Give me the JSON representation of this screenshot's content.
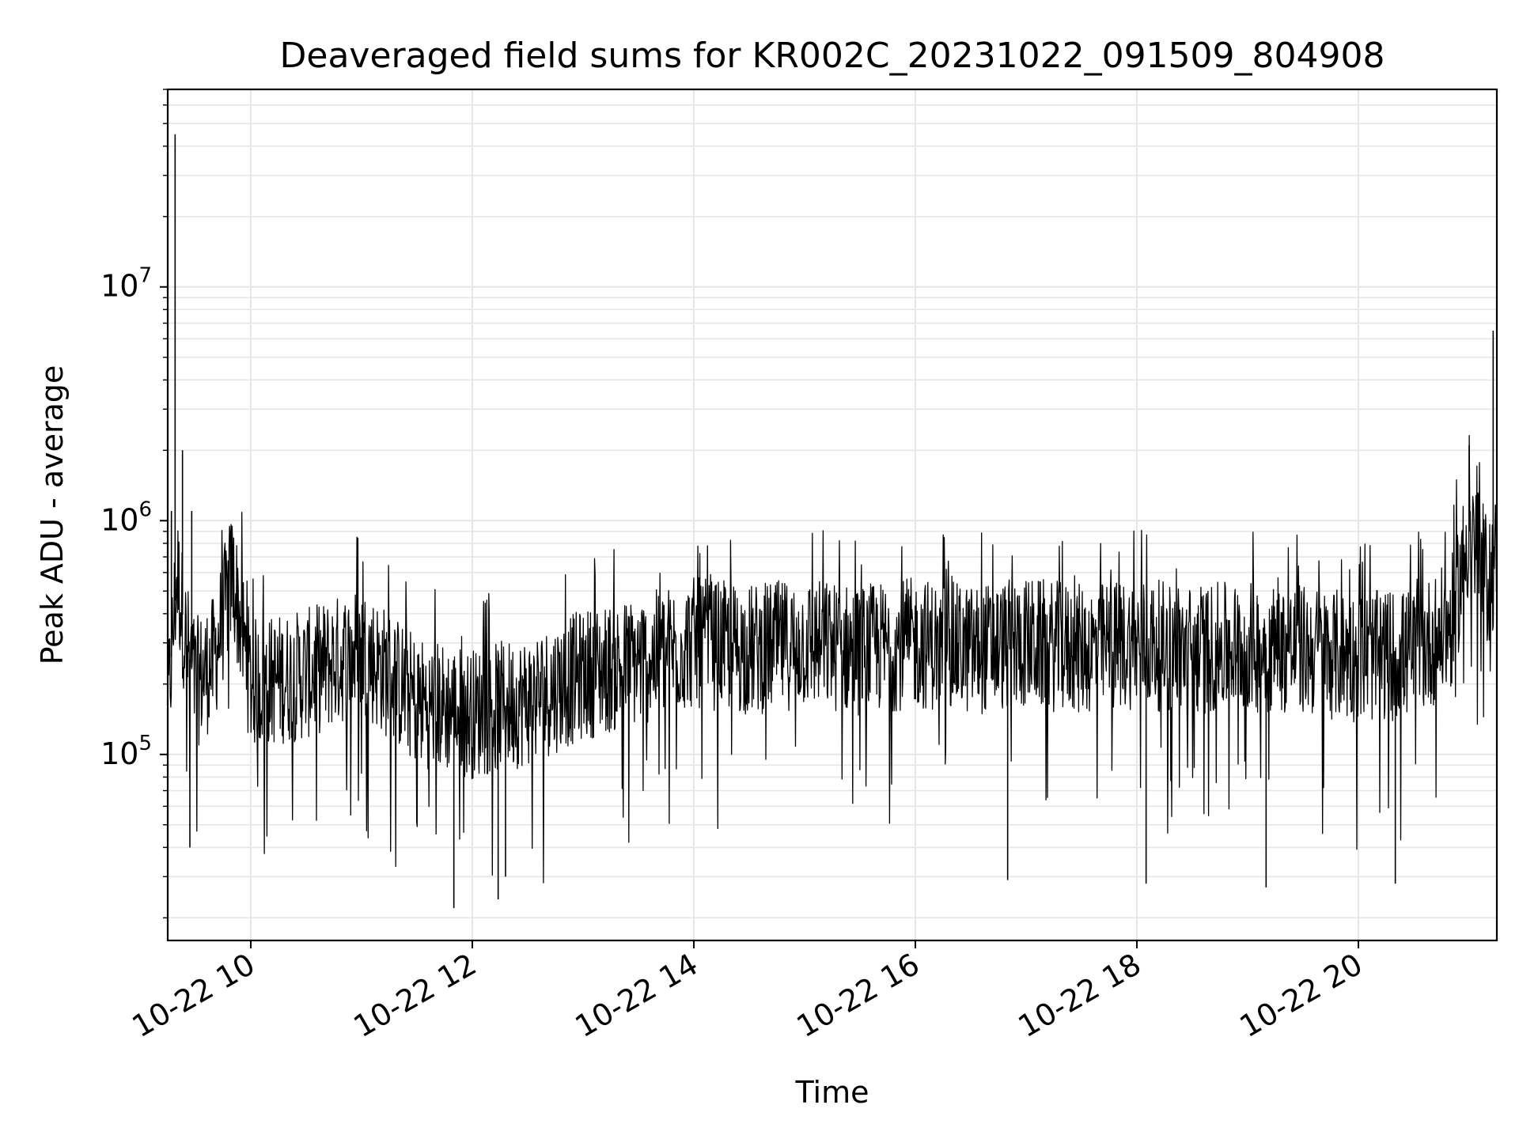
{
  "chart_data": {
    "type": "line",
    "title": "Deaveraged field sums for KR002C_20231022_091509_804908",
    "xlabel": "Time",
    "ylabel": "Peak ADU - average",
    "yscale": "log",
    "grid": true,
    "x_tick_labels": [
      "10-22 10",
      "10-22 12",
      "10-22 14",
      "10-22 16",
      "10-22 18",
      "10-22 20"
    ],
    "x_ticks": [
      "2023-10-22 10:00",
      "2023-10-22 12:00",
      "2023-10-22 14:00",
      "2023-10-22 16:00",
      "2023-10-22 18:00",
      "2023-10-22 20:00"
    ],
    "xlim": [
      "2023-10-22 09:15",
      "2023-10-22 21:15"
    ],
    "y_tick_labels": [
      {
        "base": "10",
        "exp": "5",
        "value": 100000
      },
      {
        "base": "10",
        "exp": "6",
        "value": 1000000
      },
      {
        "base": "10",
        "exp": "7",
        "value": 10000000
      }
    ],
    "ylim": [
      16000,
      70000000
    ],
    "line_color": "#000000",
    "grid_color": "#e6e6e6",
    "series": [
      {
        "x": [
          "2023-10-22 09:15",
          "2023-10-22 09:20",
          "2023-10-22 09:25",
          "2023-10-22 09:30",
          "2023-10-22 09:40",
          "2023-10-22 09:50",
          "2023-10-22 10:00",
          "2023-10-22 10:30",
          "2023-10-22 11:00",
          "2023-10-22 11:30",
          "2023-10-22 12:00",
          "2023-10-22 12:30",
          "2023-10-22 13:00",
          "2023-10-22 13:30",
          "2023-10-22 14:00",
          "2023-10-22 14:30",
          "2023-10-22 15:00",
          "2023-10-22 15:30",
          "2023-10-22 16:00",
          "2023-10-22 16:30",
          "2023-10-22 17:00",
          "2023-10-22 17:30",
          "2023-10-22 18:00",
          "2023-10-22 18:30",
          "2023-10-22 19:00",
          "2023-10-22 19:30",
          "2023-10-22 20:00",
          "2023-10-22 20:30",
          "2023-10-22 20:50",
          "2023-10-22 21:00",
          "2023-10-22 21:10",
          "2023-10-22 21:15"
        ],
        "y": [
          150000,
          600000,
          300000,
          200000,
          250000,
          600000,
          200000,
          220000,
          280000,
          170000,
          150000,
          170000,
          220000,
          250000,
          300000,
          280000,
          300000,
          280000,
          300000,
          280000,
          300000,
          280000,
          300000,
          280000,
          290000,
          280000,
          260000,
          270000,
          350000,
          900000,
          550000,
          700000
        ],
        "spikes": [
          {
            "x": "2023-10-22 09:19",
            "y": 45000000
          },
          {
            "x": "2023-10-22 09:23",
            "y": 2000000
          },
          {
            "x": "2023-10-22 09:28",
            "y": 1100000
          },
          {
            "x": "2023-10-22 09:17",
            "y": 1100000
          },
          {
            "x": "2023-10-22 21:00",
            "y": 2100000
          },
          {
            "x": "2023-10-22 21:13",
            "y": 6500000
          }
        ],
        "dips": [
          {
            "x": "2023-10-22 09:27",
            "y": 40000
          },
          {
            "x": "2023-10-22 11:50",
            "y": 22000
          },
          {
            "x": "2023-10-22 12:14",
            "y": 24000
          },
          {
            "x": "2023-10-22 12:18",
            "y": 30000
          },
          {
            "x": "2023-10-22 16:50",
            "y": 29000
          },
          {
            "x": "2023-10-22 18:05",
            "y": 28000
          },
          {
            "x": "2023-10-22 19:10",
            "y": 27000
          },
          {
            "x": "2023-10-22 20:20",
            "y": 28000
          }
        ]
      }
    ]
  }
}
